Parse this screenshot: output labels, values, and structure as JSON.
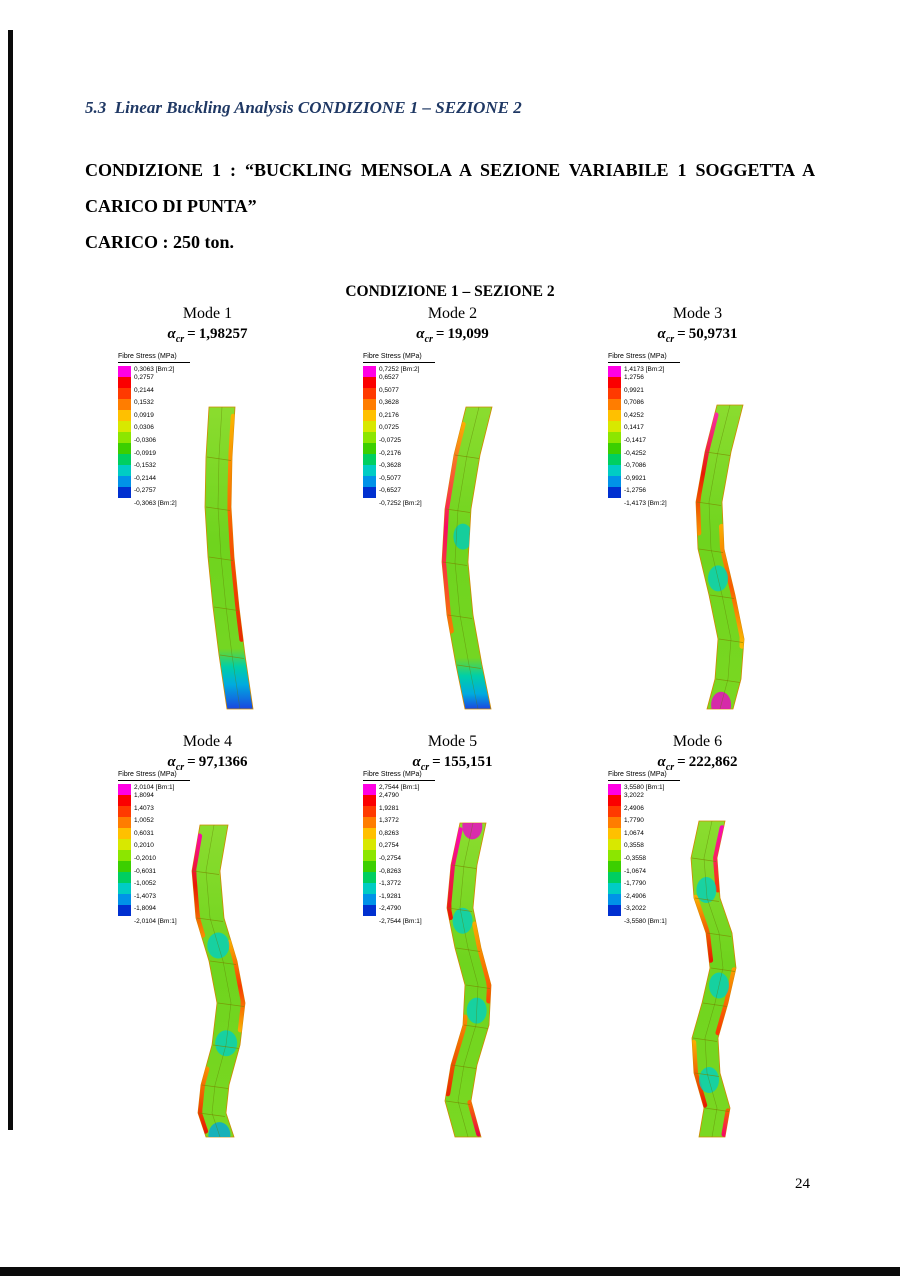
{
  "page": {
    "section_heading": "5.3  Linear Buckling Analysis CONDIZIONE 1 – SEZIONE 2",
    "paragraph_line1": "CONDIZIONE 1 : “BUCKLING MENSOLA A SEZIONE VARIABILE 1 SOGGETTA A",
    "paragraph_line2": "CARICO DI PUNTA”",
    "paragraph_line3": "CARICO : 250 ton.",
    "figure_title": "CONDIZIONE 1 – SEZIONE 2",
    "page_number": "24"
  },
  "alpha": {
    "symbol": "α",
    "subscript": "cr",
    "equals": "="
  },
  "legend": {
    "title": "Fibre Stress (MPa)",
    "palette": [
      "#ff00e4",
      "#fb0000",
      "#ff3a00",
      "#ff7d00",
      "#ffc000",
      "#d8e800",
      "#8ce600",
      "#3ccf00",
      "#00cf60",
      "#00ccc4",
      "#0092e8",
      "#0030d0"
    ]
  },
  "modes": [
    {
      "label": "Mode 1",
      "alpha_value": "1,98257",
      "legend_values": [
        "0,3063 [Bm:2]",
        "0,2757",
        "0,2144",
        "0,1532",
        "0,0919",
        "0,0306",
        "-0,0306",
        "-0,0919",
        "-0,1532",
        "-0,2144",
        "-0,2757",
        "-0,3063 [Bm:2]"
      ]
    },
    {
      "label": "Mode 2",
      "alpha_value": "19,099",
      "legend_values": [
        "0,7252 [Bm:2]",
        "0,6527",
        "0,5077",
        "0,3628",
        "0,2176",
        "0,0725",
        "-0,0725",
        "-0,2176",
        "-0,3628",
        "-0,5077",
        "-0,6527",
        "-0,7252 [Bm:2]"
      ]
    },
    {
      "label": "Mode 3",
      "alpha_value": "50,9731",
      "legend_values": [
        "1,4173 [Bm:2]",
        "1,2756",
        "0,9921",
        "0,7086",
        "0,4252",
        "0,1417",
        "-0,1417",
        "-0,4252",
        "-0,7086",
        "-0,9921",
        "-1,2756",
        "-1,4173 [Bm:2]"
      ]
    },
    {
      "label": "Mode 4",
      "alpha_value": "97,1366",
      "legend_values": [
        "2,0104 [Bm:1]",
        "1,8094",
        "1,4073",
        "1,0052",
        "0,6031",
        "0,2010",
        "-0,2010",
        "-0,6031",
        "-1,0052",
        "-1,4073",
        "-1,8094",
        "-2,0104 [Bm:1]"
      ]
    },
    {
      "label": "Mode 5",
      "alpha_value": "155,151",
      "legend_values": [
        "2,7544 [Bm:1]",
        "2,4790",
        "1,9281",
        "1,3772",
        "0,8263",
        "0,2754",
        "-0,2754",
        "-0,8263",
        "-1,3772",
        "-1,9281",
        "-2,4790",
        "-2,7544 [Bm:1]"
      ]
    },
    {
      "label": "Mode 6",
      "alpha_value": "222,862",
      "legend_values": [
        "3,5580 [Bm:1]",
        "3,2022",
        "2,4906",
        "1,7790",
        "1,0674",
        "0,3558",
        "-0,3558",
        "-1,0674",
        "-1,7790",
        "-2,4906",
        "-3,2022",
        "-3,5580 [Bm:1]"
      ]
    }
  ]
}
